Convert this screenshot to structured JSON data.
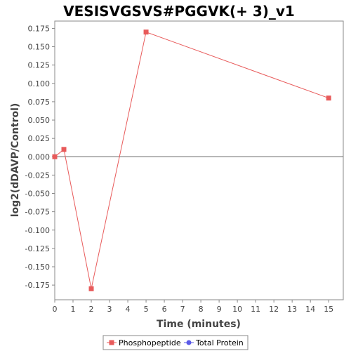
{
  "chart_data": {
    "type": "line",
    "title": "VESISVGSVS#PGGVK(+ 3)_v1",
    "xlabel": "Time (minutes)",
    "ylabel": "log2(dDAVP/Control)",
    "xlim": [
      0,
      15.8
    ],
    "ylim": [
      -0.195,
      0.185
    ],
    "x_ticks": [
      0,
      1,
      2,
      3,
      4,
      5,
      6,
      7,
      8,
      9,
      10,
      11,
      12,
      13,
      14,
      15
    ],
    "y_ticks": [
      -0.175,
      -0.15,
      -0.125,
      -0.1,
      -0.075,
      -0.05,
      -0.025,
      0.0,
      0.025,
      0.05,
      0.075,
      0.1,
      0.125,
      0.15,
      0.175
    ],
    "y_tick_labels": [
      "-0.175",
      "-0.150",
      "-0.125",
      "-0.100",
      "-0.075",
      "-0.050",
      "-0.025",
      "0.000",
      "0.025",
      "0.050",
      "0.075",
      "0.100",
      "0.125",
      "0.150",
      "0.175"
    ],
    "grid": false,
    "zero_line": true,
    "legend_position": "bottom",
    "series": [
      {
        "name": "Phosphopeptide",
        "color": "#e85a5a",
        "marker": "square",
        "x": [
          0,
          0.5,
          2,
          5,
          15
        ],
        "y": [
          0.0,
          0.01,
          -0.18,
          0.17,
          0.08
        ]
      },
      {
        "name": "Total Protein",
        "color": "#5a5ae8",
        "marker": "circle",
        "x": [],
        "y": []
      }
    ]
  }
}
